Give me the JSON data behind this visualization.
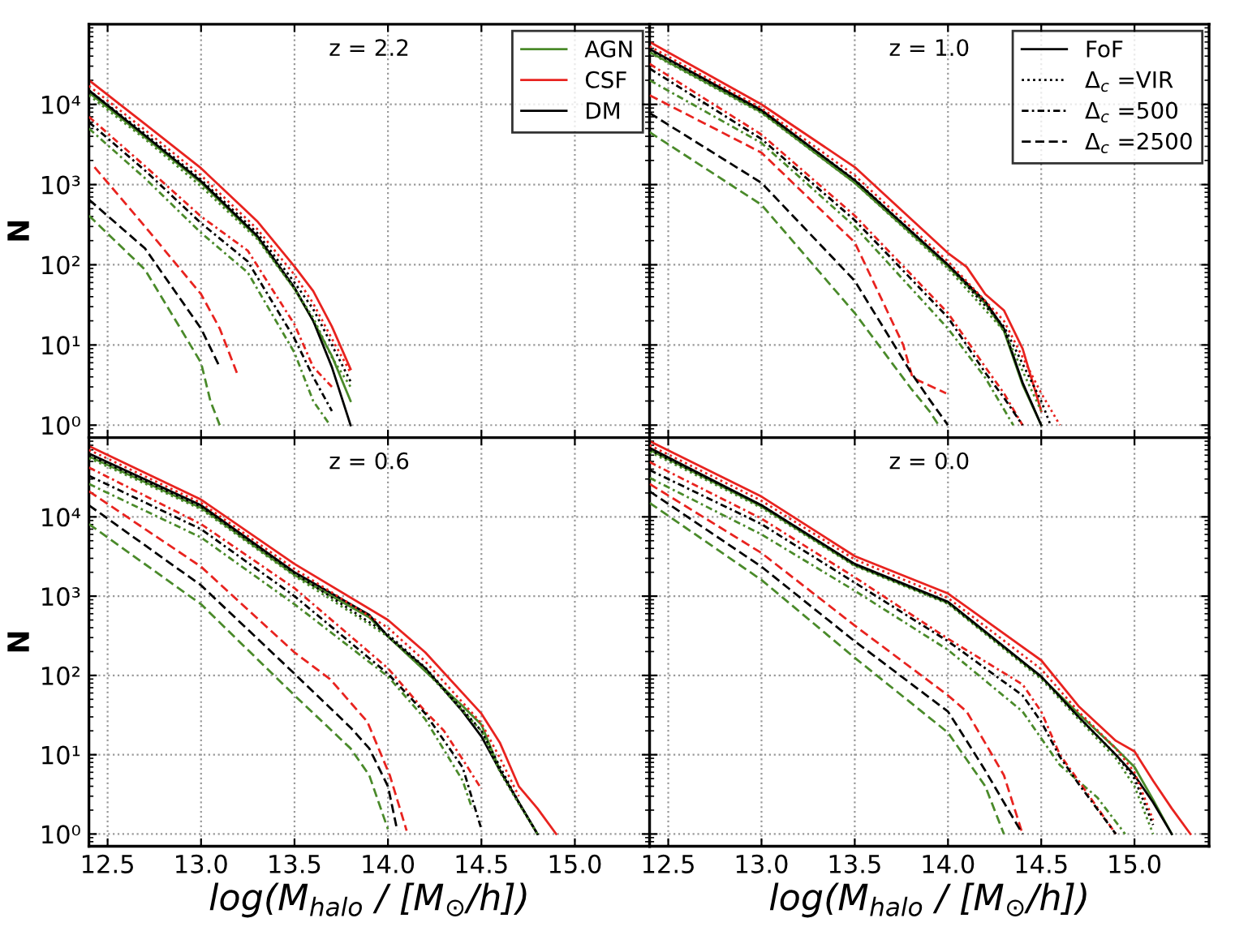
{
  "chart_data": [
    {
      "type": "line",
      "title": "z = 2.2",
      "ylabel": "N",
      "log": "y",
      "grid": true,
      "legend": "top right",
      "tick_labels": "y",
      "xlim": [
        12.4,
        15.4
      ],
      "ylim": [
        0.7,
        100000
      ],
      "xticks": [
        12.5,
        13.0,
        13.5,
        14.0,
        14.5,
        15.0
      ],
      "yticks": [
        {
          "value": 1,
          "label": "10⁰"
        },
        {
          "value": 10,
          "label": "10¹"
        },
        {
          "value": 100,
          "label": "10²"
        },
        {
          "value": 1000,
          "label": "10³"
        },
        {
          "value": 10000,
          "label": "10⁴"
        }
      ],
      "series": [
        {
          "name": "AGN",
          "color": "#4a8a2a",
          "line_style": "solid",
          "x": [
            12.4,
            12.7,
            13.0,
            13.3,
            13.5,
            13.6,
            13.7,
            13.8
          ],
          "values": [
            14000,
            3900,
            1050,
            220,
            50,
            20,
            7.3,
            2
          ]
        },
        {
          "name": "CSF",
          "color": "#e8231f",
          "line_style": "solid",
          "x": [
            12.4,
            12.7,
            13.0,
            13.3,
            13.5,
            13.6,
            13.7,
            13.8
          ],
          "values": [
            20000,
            5700,
            1600,
            350,
            95,
            47,
            17,
            5
          ]
        },
        {
          "name": "DM",
          "color": "#000000",
          "line_style": "solid",
          "x": [
            12.4,
            12.7,
            13.0,
            13.3,
            13.5,
            13.6,
            13.7,
            13.8
          ],
          "values": [
            15000,
            4100,
            1100,
            230,
            52,
            20,
            5.3,
            1
          ]
        },
        {
          "color": "#4a8a2a",
          "line_style": "dotted",
          "x": [
            12.4,
            12.7,
            13.0,
            13.3,
            13.5,
            13.6,
            13.7,
            13.8
          ],
          "values": [
            13000,
            3700,
            950,
            210,
            50,
            22,
            7,
            3
          ]
        },
        {
          "color": "#e8231f",
          "line_style": "dotted",
          "x": [
            12.4,
            12.7,
            13.0,
            13.3,
            13.5,
            13.6,
            13.7,
            13.8
          ],
          "values": [
            17000,
            4800,
            1300,
            280,
            75,
            33,
            12,
            4.5
          ]
        },
        {
          "color": "#000000",
          "line_style": "dotted",
          "x": [
            12.4,
            12.7,
            13.0,
            13.3,
            13.5,
            13.6,
            13.7,
            13.8
          ],
          "values": [
            15000,
            4300,
            1150,
            250,
            60,
            28,
            10,
            3.5
          ]
        },
        {
          "color": "#4a8a2a",
          "line_style": "dashdot",
          "x": [
            12.4,
            12.7,
            13.0,
            13.25,
            13.5,
            13.6,
            13.69
          ],
          "values": [
            5000,
            1200,
            250,
            80,
            8,
            2,
            1
          ]
        },
        {
          "color": "#e8231f",
          "line_style": "dashdot",
          "x": [
            12.4,
            12.7,
            13.0,
            13.25,
            13.5,
            13.6,
            13.7
          ],
          "values": [
            7000,
            1700,
            400,
            150,
            18,
            5.3,
            3
          ]
        },
        {
          "color": "#000000",
          "line_style": "dashdot",
          "x": [
            12.4,
            12.7,
            13.0,
            13.25,
            13.5,
            13.6,
            13.7
          ],
          "values": [
            6000,
            1500,
            330,
            110,
            12,
            4,
            1.5
          ]
        },
        {
          "color": "#4a8a2a",
          "line_style": "dashed",
          "x": [
            12.4,
            12.7,
            13.0,
            13.05,
            13.1
          ],
          "values": [
            410,
            87,
            6,
            2,
            1
          ]
        },
        {
          "color": "#e8231f",
          "line_style": "dashed",
          "x": [
            12.43,
            12.7,
            13.0,
            13.1,
            13.2
          ],
          "values": [
            1650,
            300,
            43,
            16,
            4
          ]
        },
        {
          "color": "#000000",
          "line_style": "dashed",
          "x": [
            12.4,
            12.7,
            13.0,
            13.1
          ],
          "values": [
            650,
            160,
            16,
            5.3
          ]
        }
      ]
    },
    {
      "type": "line",
      "title": "z = 1.0",
      "log": "y",
      "grid": true,
      "legend": "top right",
      "tick_labels": false,
      "xlim": [
        12.4,
        15.4
      ],
      "ylim": [
        0.7,
        100000
      ],
      "xticks": [
        {
          "value": 12.5,
          "label": null
        },
        {
          "value": 13,
          "label": null
        },
        {
          "value": 13.5,
          "label": null
        },
        {
          "value": 14,
          "label": null
        },
        {
          "value": 14.5,
          "label": null
        },
        {
          "value": 15,
          "label": null
        }
      ],
      "yticks": [
        {
          "value": 1,
          "label": null
        },
        {
          "value": 10,
          "label": null
        },
        {
          "value": 100,
          "label": null
        },
        {
          "value": 1000,
          "label": null
        },
        {
          "value": 10000,
          "label": null
        }
      ],
      "series": [
        {
          "color": "#4a8a2a",
          "line_style": "solid",
          "x": [
            12.4,
            13.0,
            13.5,
            14.0,
            14.2,
            14.3,
            14.4,
            14.5
          ],
          "values": [
            45000,
            8000,
            1050,
            95,
            33,
            15,
            3.2,
            1
          ]
        },
        {
          "color": "#e8231f",
          "line_style": "solid",
          "x": [
            12.4,
            13.0,
            13.5,
            14.0,
            14.1,
            14.2,
            14.3,
            14.4,
            14.5
          ],
          "values": [
            60000,
            10000,
            1650,
            140,
            94,
            43,
            27,
            9,
            1.5
          ]
        },
        {
          "name": "FoF",
          "color": "#000000",
          "line_style": "solid",
          "x": [
            12.4,
            13.0,
            13.5,
            14.0,
            14.2,
            14.3,
            14.4,
            14.5
          ],
          "values": [
            49000,
            8500,
            1130,
            100,
            35,
            16,
            3.4,
            1
          ]
        },
        {
          "color": "#4a8a2a",
          "line_style": "dotted",
          "x": [
            12.4,
            13.0,
            13.5,
            14.0,
            14.3,
            14.5
          ],
          "values": [
            44000,
            7800,
            1050,
            90,
            15,
            1.5
          ]
        },
        {
          "color": "#e8231f",
          "line_style": "dotted",
          "x": [
            12.4,
            13.0,
            13.5,
            14.0,
            14.3,
            14.5,
            14.6
          ],
          "values": [
            53000,
            9000,
            1300,
            110,
            20,
            2.5,
            1
          ]
        },
        {
          "name": "Δ$_{c}$ =VIR",
          "color": "#000000",
          "line_style": "dotted",
          "x": [
            12.4,
            13.0,
            13.5,
            14.0,
            14.3,
            14.5,
            14.55
          ],
          "values": [
            48000,
            8300,
            1150,
            100,
            17,
            2,
            1
          ]
        },
        {
          "color": "#4a8a2a",
          "line_style": "dashdot",
          "x": [
            12.4,
            13.0,
            13.5,
            14.0,
            14.2,
            14.35
          ],
          "values": [
            20000,
            3300,
            300,
            16,
            3.9,
            1
          ]
        },
        {
          "color": "#e8231f",
          "line_style": "dashdot",
          "x": [
            12.4,
            13.0,
            13.5,
            14.0,
            14.2,
            14.3,
            14.4
          ],
          "values": [
            32000,
            4200,
            410,
            25,
            5.3,
            2.5,
            1
          ]
        },
        {
          "name": "Δ$_{c}$ =500",
          "color": "#000000",
          "line_style": "dashdot",
          "x": [
            12.4,
            13.0,
            13.5,
            14.0,
            14.2,
            14.3,
            14.4
          ],
          "values": [
            28000,
            3700,
            360,
            22,
            4.5,
            2.2,
            1
          ]
        },
        {
          "color": "#4a8a2a",
          "line_style": "dashed",
          "x": [
            12.4,
            13.0,
            13.5,
            13.8,
            13.9,
            13.95
          ],
          "values": [
            4500,
            560,
            25,
            2.9,
            1.5,
            1
          ]
        },
        {
          "color": "#e8231f",
          "line_style": "dashed",
          "x": [
            12.4,
            13.0,
            13.5,
            13.76,
            13.81,
            13.99
          ],
          "values": [
            13000,
            2500,
            190,
            10,
            3.9,
            2.5
          ]
        },
        {
          "name": "Δ$_{c}$ =2500",
          "color": "#000000",
          "line_style": "dashed",
          "x": [
            12.4,
            13.0,
            13.5,
            13.8,
            13.9,
            14.0
          ],
          "values": [
            7800,
            1050,
            63,
            4.6,
            2.1,
            1
          ]
        }
      ]
    },
    {
      "type": "line",
      "title": "z = 0.6",
      "ylabel": "N",
      "xlabel": "log(M$_{halo}$ / [M$_{⊙}$/h])",
      "log": "y",
      "grid": true,
      "xlim": [
        12.4,
        15.4
      ],
      "ylim": [
        0.7,
        100000
      ],
      "xticks": [
        12.5,
        {
          "value": 13,
          "label": "13.0"
        },
        13.5,
        {
          "value": 14,
          "label": "14.0"
        },
        14.5,
        {
          "value": 15,
          "label": "15.0"
        }
      ],
      "yticks": [
        {
          "value": 1,
          "label": "10⁰"
        },
        {
          "value": 10,
          "label": "10¹"
        },
        {
          "value": 100,
          "label": "10²"
        },
        {
          "value": 1000,
          "label": "10³"
        },
        {
          "value": 10000,
          "label": "10⁴"
        }
      ],
      "series": [
        {
          "color": "#4a8a2a",
          "line_style": "solid",
          "x": [
            12.4,
            13.0,
            13.5,
            13.9,
            14.0,
            14.2,
            14.4,
            14.5,
            14.6,
            14.7,
            14.8
          ],
          "values": [
            58000,
            13000,
            1850,
            540,
            310,
            113,
            41,
            24,
            6.3,
            2.5,
            1
          ]
        },
        {
          "color": "#e8231f",
          "line_style": "solid",
          "x": [
            12.4,
            13.0,
            13.5,
            14.0,
            14.2,
            14.5,
            14.6,
            14.7,
            14.8,
            14.9
          ],
          "values": [
            78000,
            16500,
            2550,
            500,
            195,
            33,
            14,
            4,
            2.1,
            1
          ]
        },
        {
          "color": "#000000",
          "line_style": "solid",
          "x": [
            12.4,
            13.0,
            13.5,
            13.9,
            14.0,
            14.2,
            14.4,
            14.5,
            14.6,
            14.7,
            14.8
          ],
          "values": [
            63000,
            14000,
            2000,
            580,
            310,
            123,
            35,
            17,
            6.3,
            2.5,
            1
          ]
        },
        {
          "color": "#4a8a2a",
          "line_style": "dotted",
          "x": [
            12.4,
            13.0,
            13.5,
            14.0,
            14.2,
            14.5,
            14.6,
            14.7,
            14.8
          ],
          "values": [
            55000,
            12500,
            1800,
            310,
            115,
            20,
            6,
            2.4,
            1
          ]
        },
        {
          "color": "#e8231f",
          "line_style": "dotted",
          "x": [
            12.4,
            13.0,
            13.5,
            14.0,
            14.2,
            14.5,
            14.6,
            14.7
          ],
          "values": [
            70000,
            15000,
            2200,
            400,
            150,
            25,
            9,
            3
          ]
        },
        {
          "color": "#000000",
          "line_style": "dotted",
          "x": [
            12.4,
            13.0,
            13.5,
            14.0,
            14.2,
            14.5,
            14.6,
            14.7,
            14.8
          ],
          "values": [
            60000,
            13500,
            1950,
            330,
            125,
            20,
            7,
            2.5,
            1
          ]
        },
        {
          "color": "#4a8a2a",
          "line_style": "dashdot",
          "x": [
            12.4,
            13.0,
            13.5,
            14.0,
            14.2,
            14.4,
            14.45
          ],
          "values": [
            26000,
            5500,
            790,
            97,
            28,
            4.7,
            2.1
          ]
        },
        {
          "color": "#e8231f",
          "line_style": "dashdot",
          "x": [
            12.4,
            13.0,
            13.5,
            14.0,
            14.2,
            14.3,
            14.4,
            14.5
          ],
          "values": [
            42000,
            8100,
            1260,
            123,
            35,
            20,
            8.7,
            3.7
          ]
        },
        {
          "color": "#000000",
          "line_style": "dashdot",
          "x": [
            12.4,
            13.0,
            13.5,
            14.0,
            14.2,
            14.4,
            14.5
          ],
          "values": [
            33000,
            7000,
            1000,
            105,
            33,
            6.9,
            1.15
          ]
        },
        {
          "color": "#4a8a2a",
          "line_style": "dashed",
          "x": [
            12.4,
            13.0,
            13.5,
            13.8,
            13.9,
            14.0
          ],
          "values": [
            8100,
            790,
            56,
            12,
            5.5,
            1.15
          ]
        },
        {
          "color": "#e8231f",
          "line_style": "dashed",
          "x": [
            12.4,
            13.0,
            13.5,
            13.69,
            13.89,
            14.01,
            14.1
          ],
          "values": [
            21000,
            2350,
            195,
            90,
            26,
            5.5,
            1.1
          ]
        },
        {
          "color": "#000000",
          "line_style": "dashed",
          "x": [
            12.4,
            13.0,
            13.5,
            13.8,
            13.9,
            14.0,
            14.05
          ],
          "values": [
            14000,
            1370,
            105,
            22,
            12,
            4,
            1.1
          ]
        }
      ]
    },
    {
      "type": "line",
      "title": "z = 0.0",
      "xlabel": "log(M$_{halo}$ / [M$_{⊙}$/h])",
      "log": "y",
      "grid": true,
      "tick_labels": "x",
      "xlim": [
        12.4,
        15.4
      ],
      "ylim": [
        0.7,
        100000
      ],
      "xticks": [
        12.5,
        {
          "value": 13,
          "label": "13.0"
        },
        13.5,
        {
          "value": 14,
          "label": "14.0"
        },
        14.5,
        {
          "value": 15,
          "label": "15.0"
        }
      ],
      "yticks": [
        {
          "value": 1,
          "label": null
        },
        {
          "value": 10,
          "label": null
        },
        {
          "value": 100,
          "label": null
        },
        {
          "value": 1000,
          "label": null
        },
        {
          "value": 10000,
          "label": null
        }
      ],
      "series": [
        {
          "color": "#4a8a2a",
          "line_style": "solid",
          "x": [
            12.4,
            13.0,
            13.5,
            14.0,
            14.5,
            14.7,
            14.9,
            15.0,
            15.1,
            15.2
          ],
          "values": [
            70000,
            13500,
            2450,
            820,
            95,
            33,
            12,
            7,
            2.7,
            1
          ]
        },
        {
          "color": "#e8231f",
          "line_style": "solid",
          "x": [
            12.4,
            13.0,
            13.5,
            14.0,
            14.5,
            14.7,
            14.9,
            15.0,
            15.1,
            15.2,
            15.3
          ],
          "values": [
            90000,
            18000,
            3200,
            1080,
            155,
            41,
            15,
            11,
            4.7,
            2.1,
            1
          ]
        },
        {
          "color": "#000000",
          "line_style": "solid",
          "x": [
            12.4,
            13.0,
            13.5,
            14.0,
            14.5,
            14.7,
            14.9,
            15.0,
            15.1,
            15.2
          ],
          "values": [
            74000,
            14000,
            2550,
            850,
            97,
            30,
            10,
            5.5,
            2.5,
            1
          ]
        },
        {
          "color": "#4a8a2a",
          "line_style": "dotted",
          "x": [
            12.4,
            13.0,
            13.5,
            14.0,
            14.5,
            14.7,
            14.9,
            15.0,
            15.1
          ],
          "values": [
            66000,
            13000,
            2400,
            800,
            90,
            28,
            9,
            4,
            1
          ]
        },
        {
          "color": "#e8231f",
          "line_style": "dotted",
          "x": [
            12.4,
            13.0,
            13.5,
            14.0,
            14.5,
            14.7,
            14.9,
            15.0,
            15.1
          ],
          "values": [
            80000,
            16000,
            2900,
            950,
            120,
            35,
            12,
            6,
            1.5
          ]
        },
        {
          "color": "#000000",
          "line_style": "dotted",
          "x": [
            12.4,
            13.0,
            13.5,
            14.0,
            14.5,
            14.7,
            14.9,
            15.0,
            15.1
          ],
          "values": [
            70000,
            14000,
            2500,
            830,
            95,
            30,
            10,
            5,
            1.3
          ]
        },
        {
          "color": "#4a8a2a",
          "line_style": "dashdot",
          "x": [
            12.4,
            13.0,
            13.5,
            14.0,
            14.4,
            14.6,
            14.8,
            14.95
          ],
          "values": [
            31000,
            6000,
            1170,
            210,
            35,
            7.4,
            2.9,
            1
          ]
        },
        {
          "color": "#e8231f",
          "line_style": "dashdot",
          "x": [
            12.4,
            13.0,
            13.5,
            14.0,
            14.4,
            14.5,
            14.6,
            14.7,
            14.9
          ],
          "values": [
            49000,
            9500,
            1730,
            290,
            77,
            35,
            10,
            4.7,
            1
          ]
        },
        {
          "color": "#000000",
          "line_style": "dashdot",
          "x": [
            12.4,
            13.0,
            13.5,
            14.0,
            14.4,
            14.5,
            14.6,
            14.7,
            14.9
          ],
          "values": [
            39000,
            8100,
            1480,
            270,
            56,
            26,
            9.4,
            4.3,
            1
          ]
        },
        {
          "color": "#4a8a2a",
          "line_style": "dashed",
          "x": [
            12.4,
            13.0,
            13.5,
            14.0,
            14.1,
            14.2,
            14.3
          ],
          "values": [
            15000,
            1600,
            167,
            19,
            8.7,
            4,
            1
          ]
        },
        {
          "color": "#e8231f",
          "line_style": "dashed",
          "x": [
            12.4,
            13.0,
            13.5,
            14.0,
            14.1,
            14.2,
            14.3,
            14.4
          ],
          "values": [
            26000,
            3500,
            425,
            56,
            35,
            14,
            5.5,
            1
          ]
        },
        {
          "color": "#000000",
          "line_style": "dashed",
          "x": [
            12.4,
            13.0,
            13.5,
            14.0,
            14.1,
            14.2,
            14.3,
            14.4
          ],
          "values": [
            21000,
            2350,
            270,
            35,
            15,
            6.3,
            2.5,
            1
          ]
        }
      ]
    }
  ]
}
